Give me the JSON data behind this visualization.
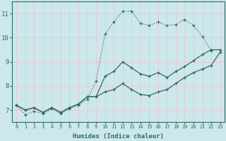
{
  "title": "",
  "xlabel": "Humidex (Indice chaleur)",
  "ylabel": "",
  "bg_color": "#cce8ec",
  "grid_color": "#b8d8dc",
  "line_color": "#2e6b62",
  "xlim": [
    -0.5,
    23.5
  ],
  "ylim": [
    6.5,
    11.5
  ],
  "yticks": [
    7,
    8,
    9,
    10,
    11
  ],
  "xticks": [
    0,
    1,
    2,
    3,
    4,
    5,
    6,
    7,
    8,
    9,
    10,
    11,
    12,
    13,
    14,
    15,
    16,
    17,
    18,
    19,
    20,
    21,
    22,
    23
  ],
  "line1_x": [
    0,
    1,
    2,
    3,
    4,
    5,
    6,
    7,
    8,
    9,
    10,
    11,
    12,
    13,
    14,
    15,
    16,
    17,
    18,
    19,
    20,
    21,
    22
  ],
  "line1_y": [
    7.2,
    6.8,
    6.95,
    6.85,
    7.05,
    6.85,
    7.05,
    7.2,
    7.45,
    8.2,
    10.15,
    10.65,
    11.1,
    11.1,
    10.6,
    10.5,
    10.65,
    10.5,
    10.55,
    10.75,
    10.5,
    10.05,
    9.45
  ],
  "line2_x": [
    0,
    1,
    2,
    3,
    4,
    5,
    6,
    7,
    8,
    9,
    10,
    11,
    12,
    13,
    14,
    15,
    16,
    17,
    18,
    19,
    20,
    21,
    22,
    23
  ],
  "line2_y": [
    7.2,
    7.0,
    7.1,
    6.9,
    7.1,
    6.9,
    7.1,
    7.25,
    7.55,
    7.55,
    8.4,
    8.6,
    9.0,
    8.75,
    8.5,
    8.4,
    8.55,
    8.35,
    8.6,
    8.8,
    9.05,
    9.3,
    9.5,
    9.5
  ],
  "line3_x": [
    0,
    1,
    2,
    3,
    4,
    5,
    6,
    7,
    8,
    9,
    10,
    11,
    12,
    13,
    14,
    15,
    16,
    17,
    18,
    19,
    20,
    21,
    22,
    23
  ],
  "line3_y": [
    7.2,
    7.0,
    7.1,
    6.9,
    7.1,
    6.9,
    7.1,
    7.25,
    7.55,
    7.55,
    7.75,
    7.85,
    8.1,
    7.85,
    7.65,
    7.6,
    7.75,
    7.85,
    8.1,
    8.35,
    8.55,
    8.7,
    8.85,
    9.4
  ]
}
